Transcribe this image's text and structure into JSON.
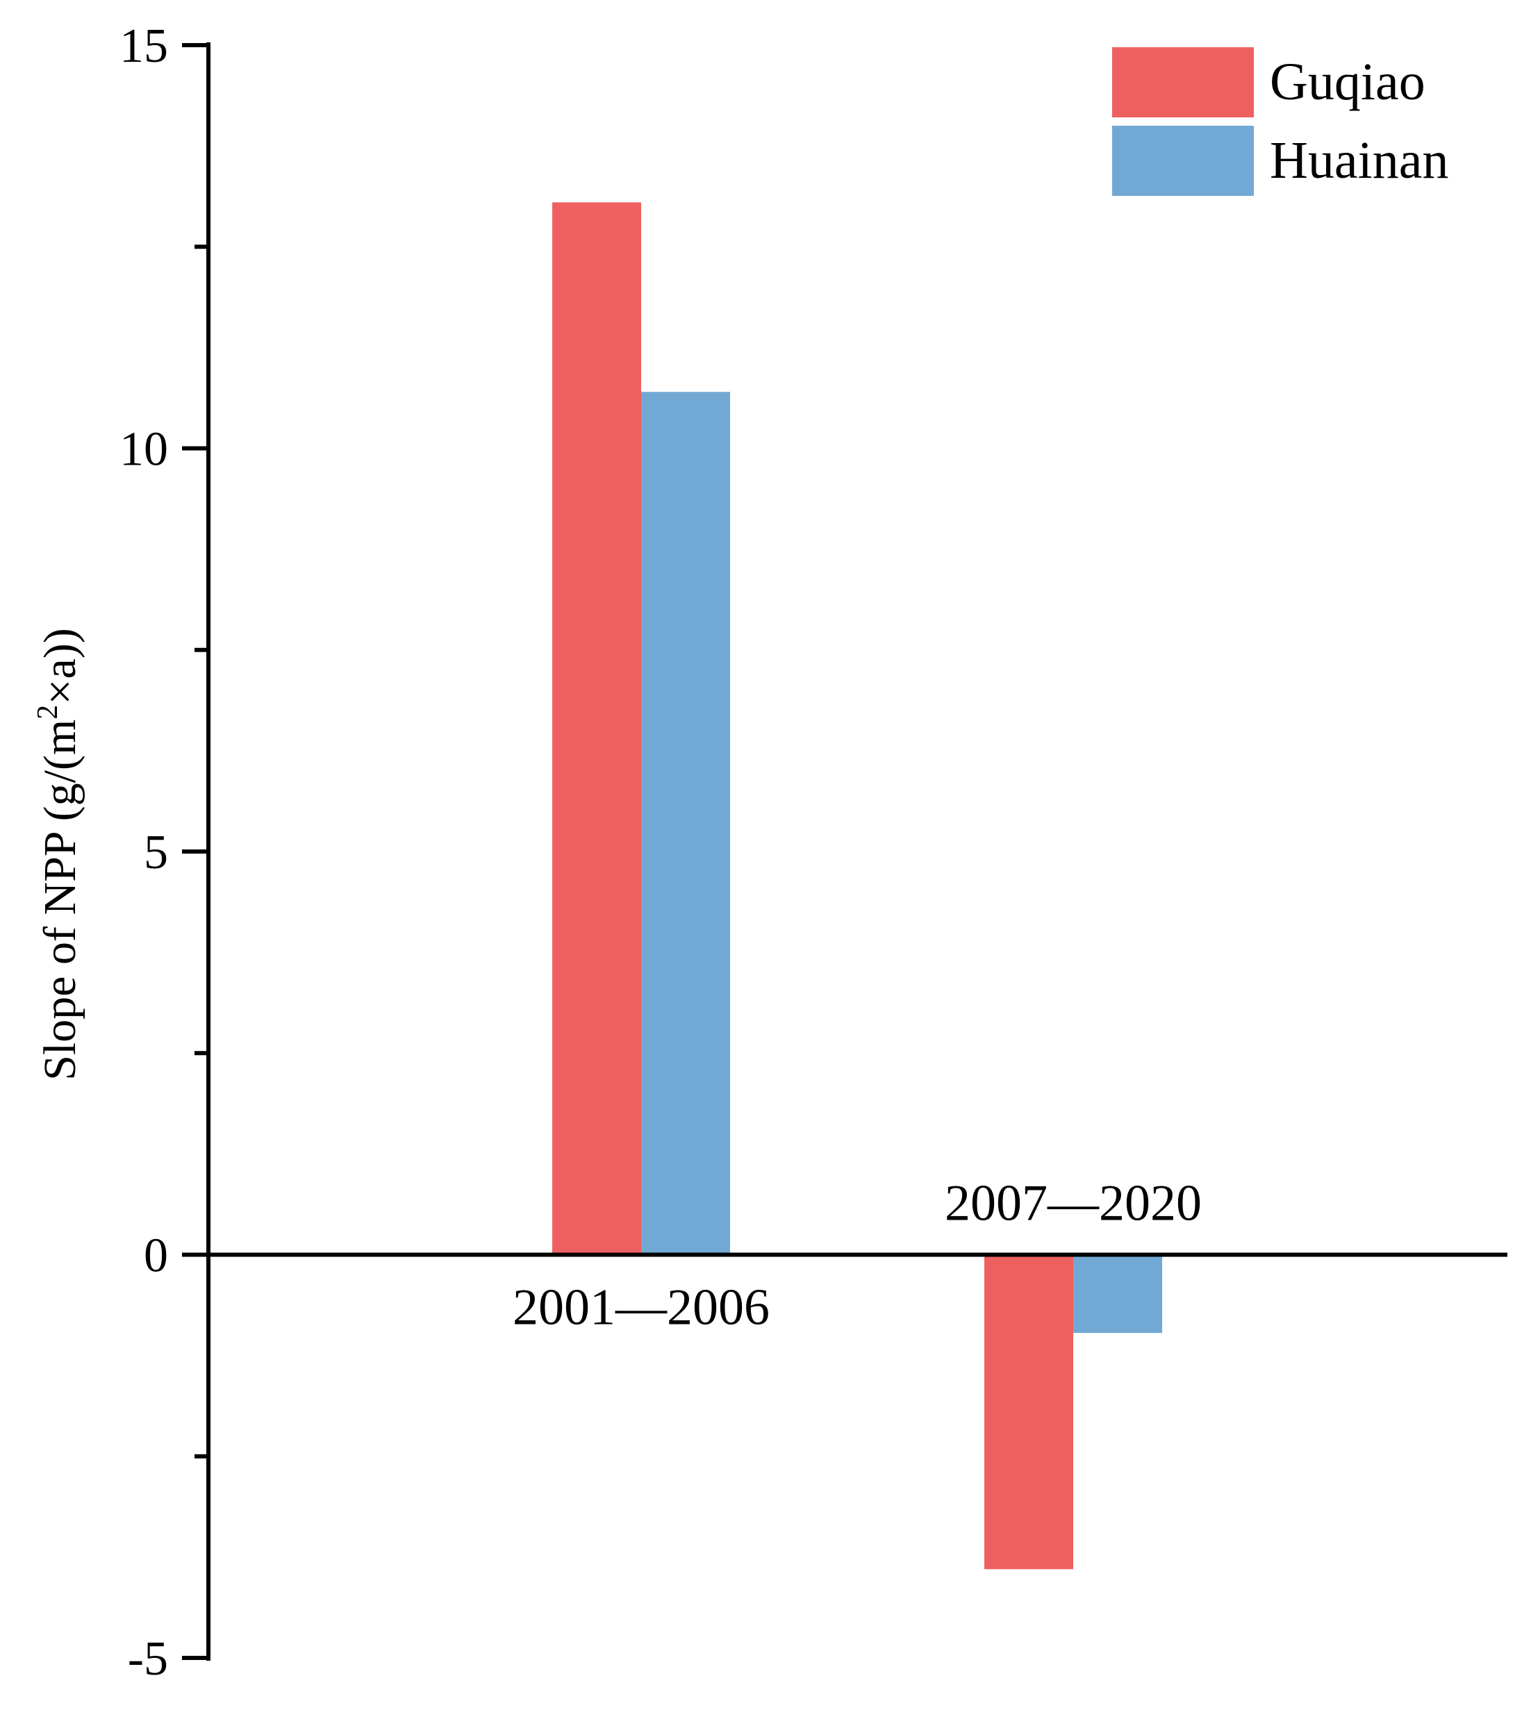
{
  "chart_data": {
    "type": "bar",
    "title": "",
    "xlabel": "",
    "ylabel": {
      "prefix": "Slope of NPP (g/(m",
      "superscript": "2",
      "suffix": "×a))"
    },
    "ylim": [
      -5,
      15
    ],
    "yticks_major": [
      -5,
      0,
      5,
      10,
      15
    ],
    "yticks_minor": [
      -2.5,
      2.5,
      7.5,
      12.5
    ],
    "categories": [
      "2001—2006",
      "2007—2020"
    ],
    "series": [
      {
        "name": "Guqiao",
        "color": "#ee6060",
        "values": [
          13.05,
          -3.9
        ]
      },
      {
        "name": "Huainan",
        "color": "#72a8d4",
        "values": [
          10.7,
          -0.97
        ]
      }
    ],
    "legend_position": "top-right",
    "grid": false
  }
}
